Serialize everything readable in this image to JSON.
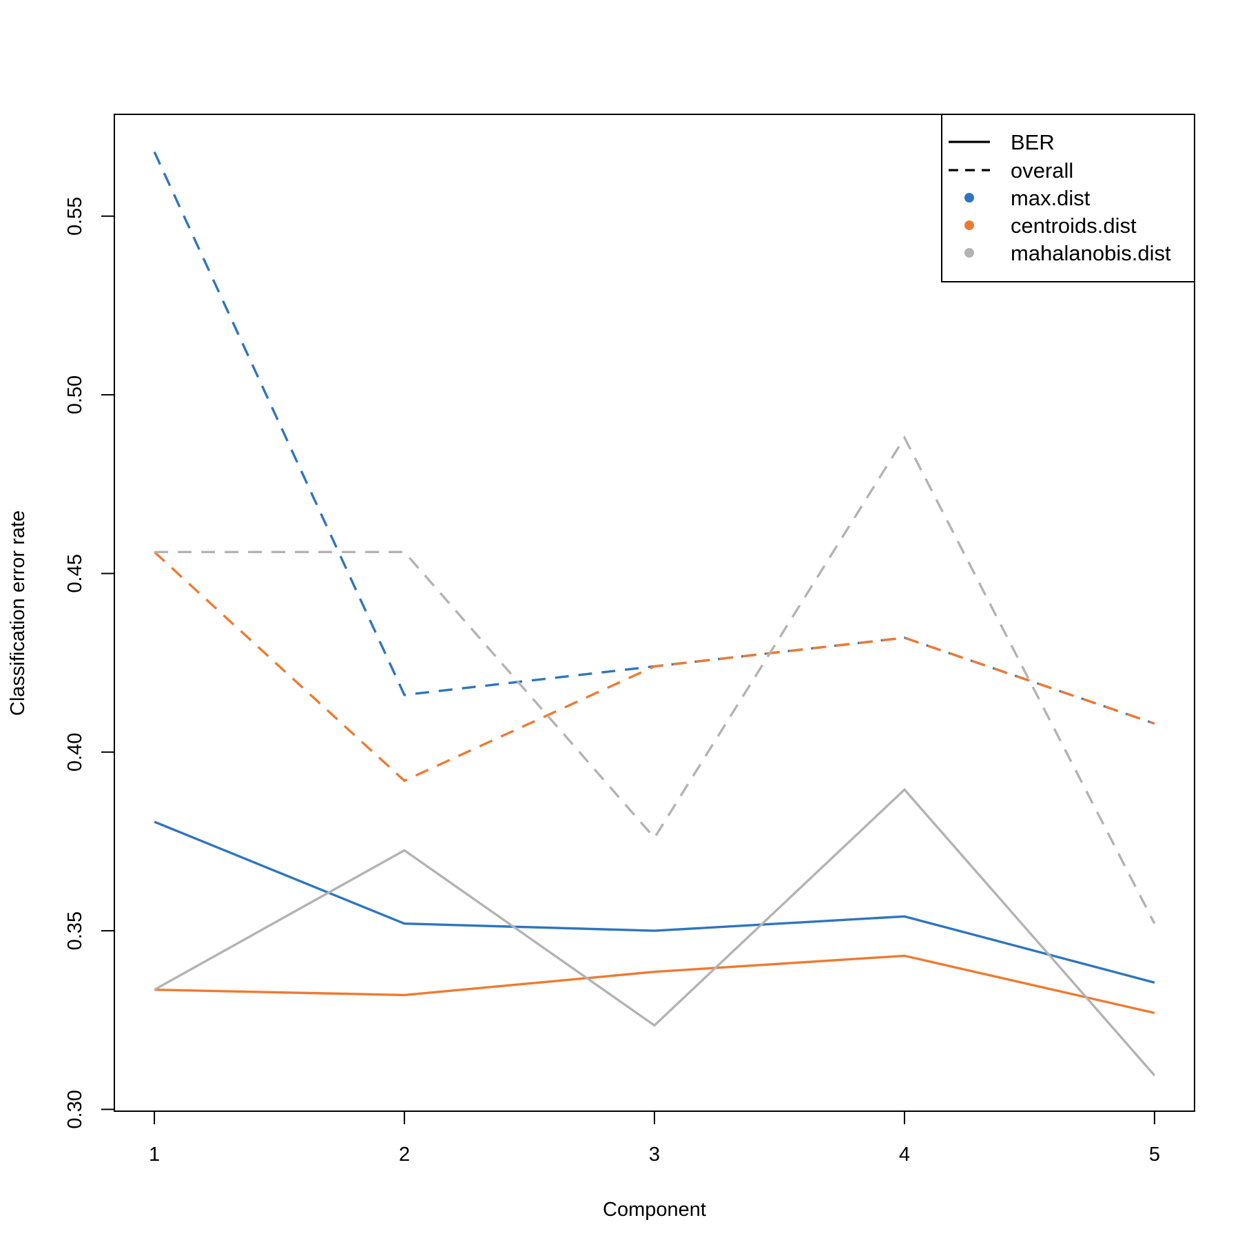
{
  "chart_data": {
    "type": "line",
    "title": "",
    "xlabel": "Component",
    "ylabel": "Classification error rate",
    "x": [
      1,
      2,
      3,
      4,
      5
    ],
    "x_ticks": [
      "1",
      "2",
      "3",
      "4",
      "5"
    ],
    "y_ticks": [
      "0.30",
      "0.35",
      "0.40",
      "0.45",
      "0.50",
      "0.55"
    ],
    "y_tick_values": [
      0.3,
      0.35,
      0.4,
      0.45,
      0.5,
      0.55
    ],
    "xlim": [
      0.84,
      5.16
    ],
    "ylim": [
      0.2995,
      0.5785
    ],
    "grid": false,
    "legend_position": "top-right",
    "legend": {
      "linetypes": [
        {
          "label": "BER",
          "dash": "solid"
        },
        {
          "label": "overall",
          "dash": "dashed"
        }
      ],
      "distances": [
        {
          "label": "max.dist",
          "color": "#2E75BE"
        },
        {
          "label": "centroids.dist",
          "color": "#EE7A30"
        },
        {
          "label": "mahalanobis.dist",
          "color": "#B3B3B3"
        }
      ]
    },
    "series": [
      {
        "distance": "max.dist",
        "measure": "overall",
        "color": "#2E75BE",
        "dash": "dashed",
        "values": [
          0.568,
          0.416,
          0.424,
          0.432,
          0.408
        ]
      },
      {
        "distance": "centroids.dist",
        "measure": "overall",
        "color": "#EE7A30",
        "dash": "dashed",
        "values": [
          0.456,
          0.392,
          0.424,
          0.432,
          0.408
        ]
      },
      {
        "distance": "mahalanobis.dist",
        "measure": "overall",
        "color": "#B3B3B3",
        "dash": "dashed",
        "values": [
          0.456,
          0.456,
          0.376,
          0.488,
          0.352
        ]
      },
      {
        "distance": "max.dist",
        "measure": "BER",
        "color": "#2E75BE",
        "dash": "solid",
        "values": [
          0.3805,
          0.352,
          0.35,
          0.354,
          0.3355
        ]
      },
      {
        "distance": "centroids.dist",
        "measure": "BER",
        "color": "#EE7A30",
        "dash": "solid",
        "values": [
          0.3335,
          0.332,
          0.3385,
          0.343,
          0.327
        ]
      },
      {
        "distance": "mahalanobis.dist",
        "measure": "BER",
        "color": "#B3B3B3",
        "dash": "solid",
        "values": [
          0.3335,
          0.3725,
          0.3235,
          0.3895,
          0.3095
        ]
      }
    ]
  }
}
